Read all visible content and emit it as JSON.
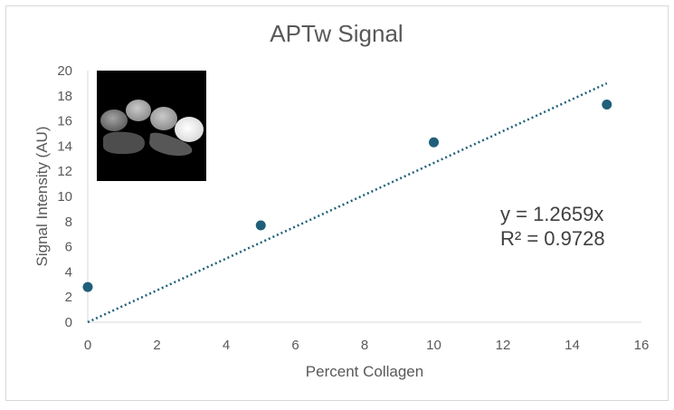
{
  "chart_data": {
    "type": "scatter",
    "title": "APTw Signal",
    "xlabel": "Percent Collagen",
    "ylabel": "Signal Intensity (AU)",
    "xlim": [
      0,
      16
    ],
    "ylim": [
      0,
      20
    ],
    "xticks": [
      "0",
      "2",
      "4",
      "6",
      "8",
      "10",
      "12",
      "14",
      "16"
    ],
    "yticks": [
      "0",
      "2",
      "4",
      "6",
      "8",
      "10",
      "12",
      "14",
      "16",
      "18",
      "20"
    ],
    "grid": false,
    "legend": "none",
    "series": [
      {
        "x": [
          0,
          5,
          10,
          15
        ],
        "y": [
          2.8,
          7.7,
          14.3,
          17.3
        ],
        "color": "#1f5f7a"
      }
    ],
    "trendline": {
      "type": "linear",
      "slope": 1.2659,
      "intercept": 0,
      "style": "dotted",
      "color": "#1f5f7a",
      "x_range": [
        0,
        15
      ],
      "equation": "y = 1.2659x",
      "r_squared": "R² = 0.9728"
    },
    "inset_image": "grayscale MRI slice of tissue samples"
  }
}
